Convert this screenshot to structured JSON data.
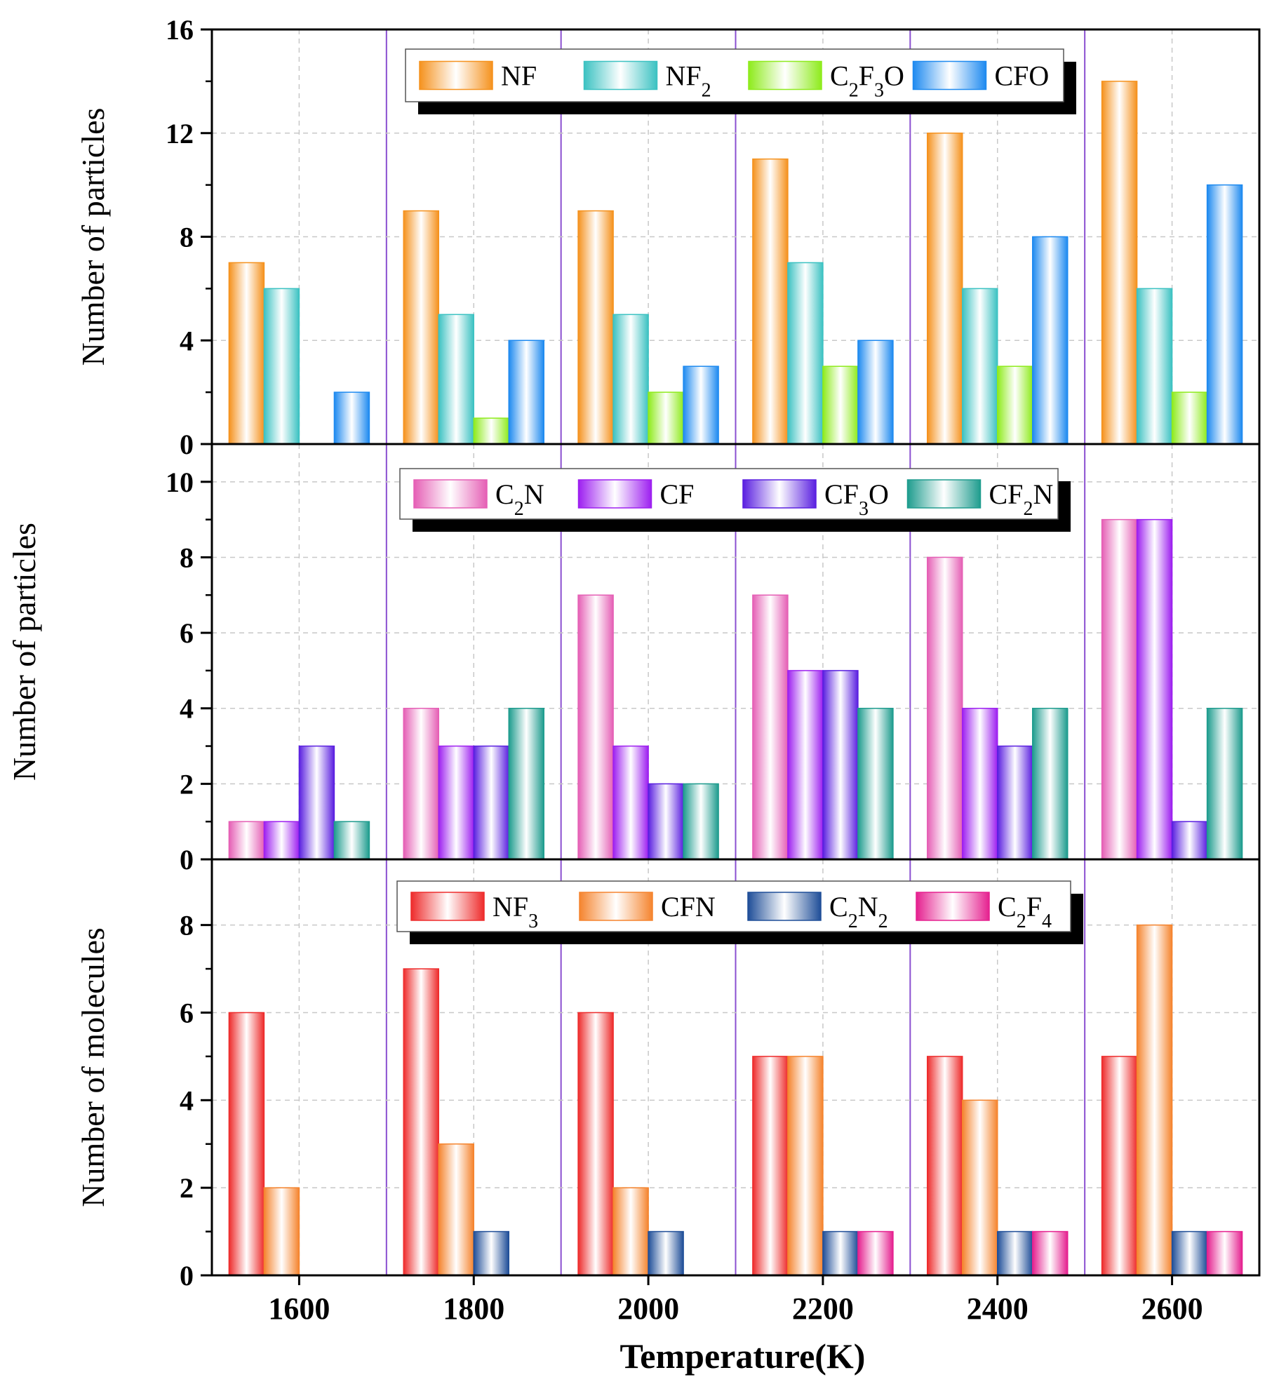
{
  "chart_data": {
    "type": "bar",
    "x_title": "Temperature(K)",
    "categories": [
      "1600",
      "1800",
      "2000",
      "2200",
      "2400",
      "2600"
    ],
    "colors": {
      "NF": "#F5921E",
      "NF2": "#3CC2C2",
      "C2F3O": "#8EEB1C",
      "CFO": "#1E8AF0",
      "C2N": "#E55FB5",
      "CF": "#9D1FF0",
      "CF3O": "#5A1FE0",
      "CF2N": "#1E9C8E",
      "NF3": "#EE2C2C",
      "CFN": "#F5842E",
      "C2N2": "#1F4E98",
      "C2F4": "#E5208F",
      "separator": "#8A4FD0",
      "grid": "#C8C8C8"
    },
    "panels": [
      {
        "ylabel": "Number of particles",
        "ylim": [
          0,
          16
        ],
        "yticks": [
          "0",
          "4",
          "8",
          "12",
          "16"
        ],
        "series": [
          {
            "key": "NF",
            "label": [
              {
                "t": "NF",
                "s": ""
              }
            ],
            "values": [
              7,
              9,
              9,
              11,
              12,
              14
            ]
          },
          {
            "key": "NF2",
            "label": [
              {
                "t": "NF",
                "s": ""
              },
              {
                "t": "2",
                "s": "sub"
              }
            ],
            "values": [
              6,
              5,
              5,
              7,
              6,
              6
            ]
          },
          {
            "key": "C2F3O",
            "label": [
              {
                "t": "C",
                "s": ""
              },
              {
                "t": "2",
                "s": "sub"
              },
              {
                "t": "F",
                "s": ""
              },
              {
                "t": "3",
                "s": "sub"
              },
              {
                "t": "O",
                "s": ""
              }
            ],
            "values": [
              0,
              1,
              2,
              3,
              3,
              2
            ]
          },
          {
            "key": "CFO",
            "label": [
              {
                "t": "CFO",
                "s": ""
              }
            ],
            "values": [
              2,
              4,
              3,
              4,
              8,
              10
            ]
          }
        ]
      },
      {
        "ylabel": "Number of particles",
        "ylim": [
          0,
          11
        ],
        "yticks": [
          "0",
          "2",
          "4",
          "6",
          "8",
          "10"
        ],
        "series": [
          {
            "key": "C2N",
            "label": [
              {
                "t": "C",
                "s": ""
              },
              {
                "t": "2",
                "s": "sub"
              },
              {
                "t": "N",
                "s": ""
              }
            ],
            "values": [
              1,
              4,
              7,
              7,
              8,
              9
            ]
          },
          {
            "key": "CF",
            "label": [
              {
                "t": "CF",
                "s": ""
              }
            ],
            "values": [
              1,
              3,
              3,
              5,
              4,
              9
            ]
          },
          {
            "key": "CF3O",
            "label": [
              {
                "t": "CF",
                "s": ""
              },
              {
                "t": "3",
                "s": "sub"
              },
              {
                "t": "O",
                "s": ""
              }
            ],
            "values": [
              3,
              3,
              2,
              5,
              3,
              1
            ]
          },
          {
            "key": "CF2N",
            "label": [
              {
                "t": "CF",
                "s": ""
              },
              {
                "t": "2",
                "s": "sub"
              },
              {
                "t": "N",
                "s": ""
              }
            ],
            "values": [
              1,
              4,
              2,
              4,
              4,
              4
            ]
          }
        ]
      },
      {
        "ylabel": "Number of molecules",
        "ylim": [
          0,
          9.5
        ],
        "yticks": [
          "0",
          "2",
          "4",
          "6",
          "8"
        ],
        "series": [
          {
            "key": "NF3",
            "label": [
              {
                "t": "NF",
                "s": ""
              },
              {
                "t": "3",
                "s": "sub"
              }
            ],
            "values": [
              6,
              7,
              6,
              5,
              5,
              5
            ]
          },
          {
            "key": "CFN",
            "label": [
              {
                "t": "CFN",
                "s": ""
              }
            ],
            "values": [
              2,
              3,
              2,
              5,
              4,
              8
            ]
          },
          {
            "key": "C2N2",
            "label": [
              {
                "t": "C",
                "s": ""
              },
              {
                "t": "2",
                "s": "sub"
              },
              {
                "t": "N",
                "s": ""
              },
              {
                "t": "2",
                "s": "sub"
              }
            ],
            "values": [
              0,
              1,
              1,
              1,
              1,
              1
            ]
          },
          {
            "key": "C2F4",
            "label": [
              {
                "t": "C",
                "s": ""
              },
              {
                "t": "2",
                "s": "sub"
              },
              {
                "t": "F",
                "s": ""
              },
              {
                "t": "4",
                "s": "sub"
              }
            ],
            "values": [
              0,
              0,
              0,
              1,
              1,
              1
            ]
          }
        ]
      }
    ]
  }
}
